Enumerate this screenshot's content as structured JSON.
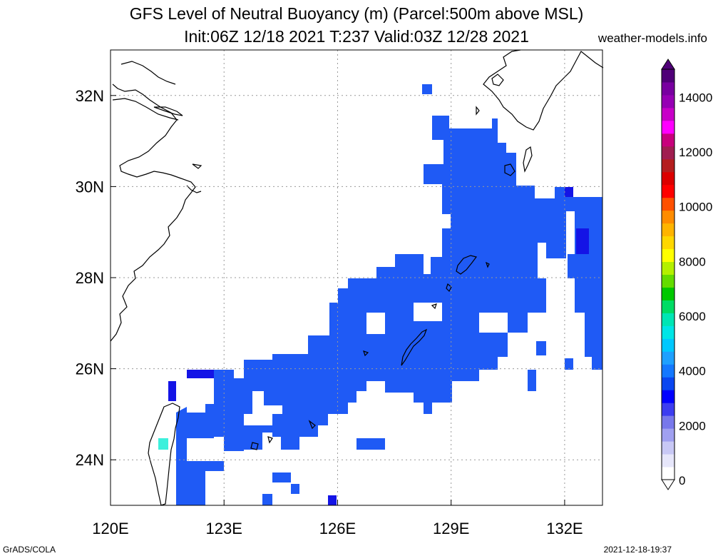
{
  "title_line1": "GFS Level of Neutral Buoyancy (m) (Parcel:500m above MSL)",
  "title_line2": "Init:06Z 12/18 2021 T:237 Valid:03Z 12/28 2021",
  "site": "weather-models.info",
  "footer_left": "GrADS/COLA",
  "footer_right": "2021-12-18-19:37",
  "map": {
    "lon_range": [
      120,
      133
    ],
    "lat_range": [
      23,
      33
    ],
    "x_ticks": [
      "120E",
      "123E",
      "126E",
      "129E",
      "132E"
    ],
    "y_ticks": [
      "24N",
      "26N",
      "28N",
      "30N",
      "32N"
    ],
    "grid": true
  },
  "colorbar": {
    "labels": [
      "0",
      "2000",
      "4000",
      "6000",
      "8000",
      "10000",
      "12000",
      "14000"
    ],
    "range": [
      0,
      15000
    ],
    "colors": [
      "#ffffff",
      "#e6e6fa",
      "#c8c8f5",
      "#a0a0f0",
      "#7878eb",
      "#3c3cf0",
      "#0000ff",
      "#0a46f0",
      "#1478ff",
      "#1ea0ff",
      "#00c8ff",
      "#00e6e6",
      "#00e6b4",
      "#00dc64",
      "#00c800",
      "#64dc00",
      "#b4f000",
      "#ffff00",
      "#ffd700",
      "#ffb400",
      "#ff8c00",
      "#ff5000",
      "#ff0000",
      "#dc0000",
      "#b41e1e",
      "#a01e50",
      "#c8007d",
      "#ff00ff",
      "#c800c8",
      "#9600b4",
      "#7800a0",
      "#500078"
    ]
  },
  "legend_colors": {
    "main": "#1f5af5",
    "dark": "#1414e6",
    "cyan": "#3cf0dc"
  }
}
